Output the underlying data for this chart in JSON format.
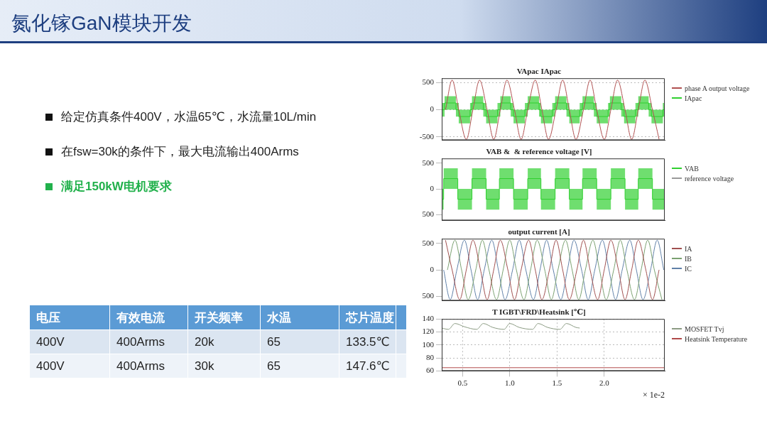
{
  "chart_data": [
    {
      "type": "other",
      "title": "氮化镓GaN模块开发",
      "annotations": [
        "给定仿真条件400V，水温65℃，水流量10L/min",
        "在fsw=30k的条件下，最大电流输出400Arms",
        "满足150kW电机要求"
      ]
    },
    {
      "type": "other",
      "categories": [
        "电压",
        "有效电流",
        "开关频率",
        "水温",
        "芯片温度"
      ],
      "cell_labels": [
        [
          "400V",
          "400Arms",
          "20k",
          "65",
          "133.5℃"
        ],
        [
          "400V",
          "400Arms",
          "30k",
          "65",
          "147.6℃"
        ]
      ]
    },
    {
      "type": "line",
      "title": "VApac IApac",
      "xlim": [
        0.28,
        2.64
      ],
      "ylim": [
        -560,
        580
      ],
      "yticks": [
        -500,
        0,
        500
      ],
      "grid": "y",
      "legend": "right",
      "tick_labels": "y",
      "series": [
        {
          "name": "phase A output voltage",
          "type": "line",
          "color": "#b05050",
          "x": [
            0.32,
            0.39,
            0.46,
            0.54,
            0.61,
            0.68,
            0.76,
            0.83,
            0.9,
            0.97,
            1.05,
            1.12,
            1.19,
            1.27,
            1.34,
            1.41,
            1.49,
            1.56,
            1.63,
            1.7,
            1.78,
            1.85,
            1.92,
            2.0,
            2.07,
            2.14,
            2.22,
            2.29,
            2.36,
            2.43,
            2.51,
            2.58
          ],
          "values": [
            0,
            545,
            0,
            -545,
            0,
            545,
            0,
            -545,
            0,
            545,
            0,
            -545,
            0,
            545,
            0,
            -545,
            0,
            545,
            0,
            -545,
            0,
            545,
            0,
            -545,
            0,
            545,
            0,
            -545,
            0,
            545,
            0,
            -545
          ]
        },
        {
          "name": "IApac",
          "type": "step",
          "color": "#2fcf2f",
          "x": [
            0.28,
            0.31,
            0.43,
            0.46,
            0.58,
            0.6,
            0.72,
            0.75,
            0.87,
            0.9,
            1.01,
            1.04,
            1.16,
            1.19,
            1.31,
            1.33,
            1.45,
            1.48,
            1.6,
            1.63,
            1.74,
            1.77,
            1.89,
            1.92,
            2.04,
            2.06,
            2.18,
            2.21,
            2.33,
            2.36,
            2.47,
            2.5,
            2.62,
            2.64
          ],
          "values": [
            0,
            125,
            0,
            -125,
            0,
            125,
            0,
            -125,
            0,
            125,
            0,
            -125,
            0,
            125,
            0,
            -125,
            0,
            125,
            0,
            -125,
            0,
            125,
            0,
            -125,
            0,
            125,
            0,
            -125,
            0,
            125,
            0,
            -125,
            0,
            0
          ],
          "lower": [
            -125,
            0,
            -125,
            -250,
            -125,
            0,
            -125,
            -250,
            -125,
            0,
            -125,
            -250,
            -125,
            0,
            -125,
            -250,
            -125,
            0,
            -125,
            -250,
            -125,
            0,
            -125,
            -250,
            -125,
            0,
            -125,
            -250,
            -125,
            0,
            -125,
            -250,
            -125,
            -125
          ],
          "upper": [
            125,
            250,
            125,
            0,
            125,
            250,
            125,
            0,
            125,
            250,
            125,
            0,
            125,
            250,
            125,
            0,
            125,
            250,
            125,
            0,
            125,
            250,
            125,
            0,
            125,
            250,
            125,
            0,
            125,
            250,
            125,
            0,
            125,
            125
          ]
        }
      ]
    },
    {
      "type": "line",
      "title": "VAB &  & reference voltage [V]",
      "xlim": [
        0.28,
        2.64
      ],
      "ylim": [
        -610,
        590
      ],
      "yticks": [
        {
          "value": -500,
          "label": "500"
        },
        0,
        500
      ],
      "legend": "right",
      "tick_labels": "y",
      "series": [
        {
          "name": "VAB",
          "type": "step",
          "color": "#2fcf2f",
          "x": [
            0.28,
            0.3,
            0.45,
            0.6,
            0.75,
            0.89,
            1.04,
            1.19,
            1.33,
            1.48,
            1.63,
            1.77,
            1.92,
            2.07,
            2.22,
            2.36,
            2.51,
            2.64
          ],
          "values": [
            -200,
            200,
            -200,
            200,
            -200,
            200,
            -200,
            200,
            -200,
            200,
            -200,
            200,
            -200,
            200,
            -200,
            200,
            -200,
            -200
          ],
          "lower": [
            -400,
            0,
            -400,
            0,
            -400,
            0,
            -400,
            0,
            -400,
            0,
            -400,
            0,
            -400,
            0,
            -400,
            0,
            -400,
            -400
          ],
          "upper": [
            0,
            400,
            0,
            400,
            0,
            400,
            0,
            400,
            0,
            400,
            0,
            400,
            0,
            400,
            0,
            400,
            0,
            0
          ]
        },
        {
          "name": "reference voltage",
          "type": "line",
          "color": "#9a9a9a"
        }
      ]
    },
    {
      "type": "line",
      "title": "output current [A]",
      "xlim": [
        0.28,
        2.64
      ],
      "ylim": [
        -580,
        588
      ],
      "yticks": [
        {
          "value": -500,
          "label": "500"
        },
        0,
        500
      ],
      "legend": "right",
      "tick_labels": "y",
      "series": [
        {
          "name": "IA",
          "type": "line",
          "color": "#a05050",
          "x": [
            0.32,
            0.39,
            0.47,
            0.54,
            0.61,
            0.69,
            0.76,
            0.83,
            0.9,
            0.98,
            1.05,
            1.12,
            1.2,
            1.27,
            1.34,
            1.42,
            1.49,
            1.56,
            1.63,
            1.71,
            1.78,
            1.85,
            1.93,
            2.0,
            2.07,
            2.15,
            2.22,
            2.29,
            2.36,
            2.44,
            2.51,
            2.58
          ],
          "values": [
            560,
            0,
            -560,
            0,
            560,
            0,
            -560,
            0,
            560,
            0,
            -560,
            0,
            560,
            0,
            -560,
            0,
            560,
            0,
            -560,
            0,
            560,
            0,
            -560,
            0,
            560,
            0,
            -560,
            0,
            560,
            0,
            -560,
            0
          ]
        },
        {
          "name": "IB",
          "type": "line",
          "color": "#7aa070",
          "x": [
            0.34,
            0.42,
            0.49,
            0.56,
            0.64,
            0.71,
            0.78,
            0.86,
            0.93,
            1.0,
            1.07,
            1.15,
            1.22,
            1.29,
            1.37,
            1.44,
            1.51,
            1.59,
            1.66,
            1.73,
            1.8,
            1.88,
            1.95,
            2.02,
            2.1,
            2.17,
            2.24,
            2.32,
            2.39,
            2.46,
            2.53,
            2.61
          ],
          "values": [
            0,
            560,
            0,
            -560,
            0,
            560,
            0,
            -560,
            0,
            560,
            0,
            -560,
            0,
            560,
            0,
            -560,
            0,
            560,
            0,
            -560,
            0,
            560,
            0,
            -560,
            0,
            560,
            0,
            -560,
            0,
            560,
            0,
            -560
          ]
        },
        {
          "name": "IC",
          "type": "line",
          "color": "#6080a8",
          "x": [
            0.3,
            0.37,
            0.44,
            0.52,
            0.59,
            0.66,
            0.73,
            0.81,
            0.88,
            0.95,
            1.03,
            1.1,
            1.17,
            1.25,
            1.32,
            1.39,
            1.46,
            1.54,
            1.61,
            1.68,
            1.76,
            1.83,
            1.9,
            1.98,
            2.05,
            2.12,
            2.19,
            2.27,
            2.34,
            2.41,
            2.49,
            2.56,
            2.63
          ],
          "values": [
            0,
            -560,
            0,
            560,
            0,
            -560,
            0,
            560,
            0,
            -560,
            0,
            560,
            0,
            -560,
            0,
            560,
            0,
            -560,
            0,
            560,
            0,
            -560,
            0,
            560,
            0,
            -560,
            0,
            560,
            0,
            -560,
            0,
            560,
            0
          ]
        }
      ]
    },
    {
      "type": "line",
      "title": "T IGBT\\FRD\\Heatsink [℃]",
      "xlabel": "× 1e-2",
      "xlim": [
        0.28,
        2.64
      ],
      "xticks": [
        0.5,
        {
          "value": 1,
          "label": "1.0"
        },
        1.5,
        {
          "value": 2,
          "label": "2.0"
        }
      ],
      "ylim": [
        60,
        140
      ],
      "yticks": [
        60,
        80,
        100,
        120,
        140
      ],
      "grid": true,
      "legend": "right",
      "series": [
        {
          "name": "MOSFET Tvj",
          "type": "line",
          "color": "#8c9c84",
          "x": [
            0.28,
            0.35,
            0.42,
            0.52,
            0.65,
            0.72,
            0.82,
            0.94,
            1.0,
            1.1,
            1.24,
            1.3,
            1.4,
            1.53,
            1.6,
            1.7,
            1.74
          ],
          "values": [
            126,
            124,
            133,
            128,
            124,
            133,
            127,
            124,
            133,
            127,
            124,
            133,
            127,
            124,
            133,
            127,
            126
          ]
        },
        {
          "name": "Heatsink Temperature",
          "type": "line",
          "color": "#b04a4a",
          "x": [
            0.28,
            2.64
          ],
          "values": [
            65,
            65
          ]
        }
      ]
    }
  ]
}
